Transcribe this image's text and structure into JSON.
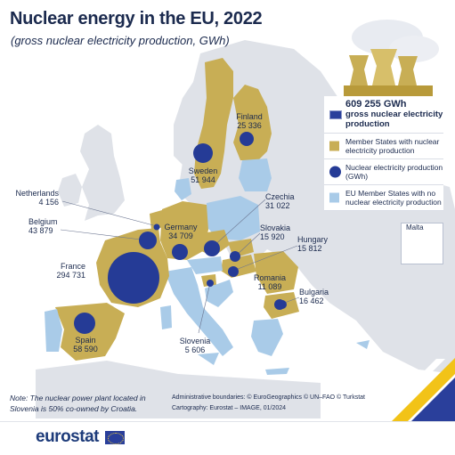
{
  "title": "Nuclear energy in the EU, 2022",
  "subtitle": "(gross nuclear electricity production, GWh)",
  "legend": {
    "total_value": "609 255 GWh",
    "total_label": "gross nuclear electricity production",
    "nuclear_states": "Member States with nuclear electricity production",
    "production_dot": "Nuclear electricity production (GWh)",
    "no_nuclear": "EU Member States with no nuclear electricity production"
  },
  "inset": {
    "label": "Malta"
  },
  "countries": [
    {
      "name": "Finland",
      "value": "25 336",
      "gwh": 25336
    },
    {
      "name": "Sweden",
      "value": "51 944",
      "gwh": 51944
    },
    {
      "name": "Netherlands",
      "value": "4 156",
      "gwh": 4156
    },
    {
      "name": "Belgium",
      "value": "43 879",
      "gwh": 43879
    },
    {
      "name": "Germany",
      "value": "34 709",
      "gwh": 34709
    },
    {
      "name": "Czechia",
      "value": "31 022",
      "gwh": 31022
    },
    {
      "name": "Slovakia",
      "value": "15 920",
      "gwh": 15920
    },
    {
      "name": "Hungary",
      "value": "15 812",
      "gwh": 15812
    },
    {
      "name": "France",
      "value": "294 731",
      "gwh": 294731
    },
    {
      "name": "Romania",
      "value": "11 089",
      "gwh": 11089
    },
    {
      "name": "Bulgaria",
      "value": "16 462",
      "gwh": 16462
    },
    {
      "name": "Spain",
      "value": "58 590",
      "gwh": 58590
    },
    {
      "name": "Slovenia",
      "value": "5 606",
      "gwh": 5606
    }
  ],
  "note": "Note: The nuclear power plant located in Slovenia is 50% co-owned by Croatia.",
  "credits": {
    "line1": "Administrative boundaries: © EuroGeographics © UN–FAO © Turkstat",
    "line2": "Cartography: Eurostat – IMAGE, 01/2024"
  },
  "logo": "eurostat",
  "colors": {
    "nuclear_state": "#c8ae55",
    "no_nuclear_state": "#a9cbe8",
    "non_eu": "#dfe2e8",
    "sea": "#ffffff",
    "dot": "#253b96",
    "text": "#1b2a4e"
  }
}
